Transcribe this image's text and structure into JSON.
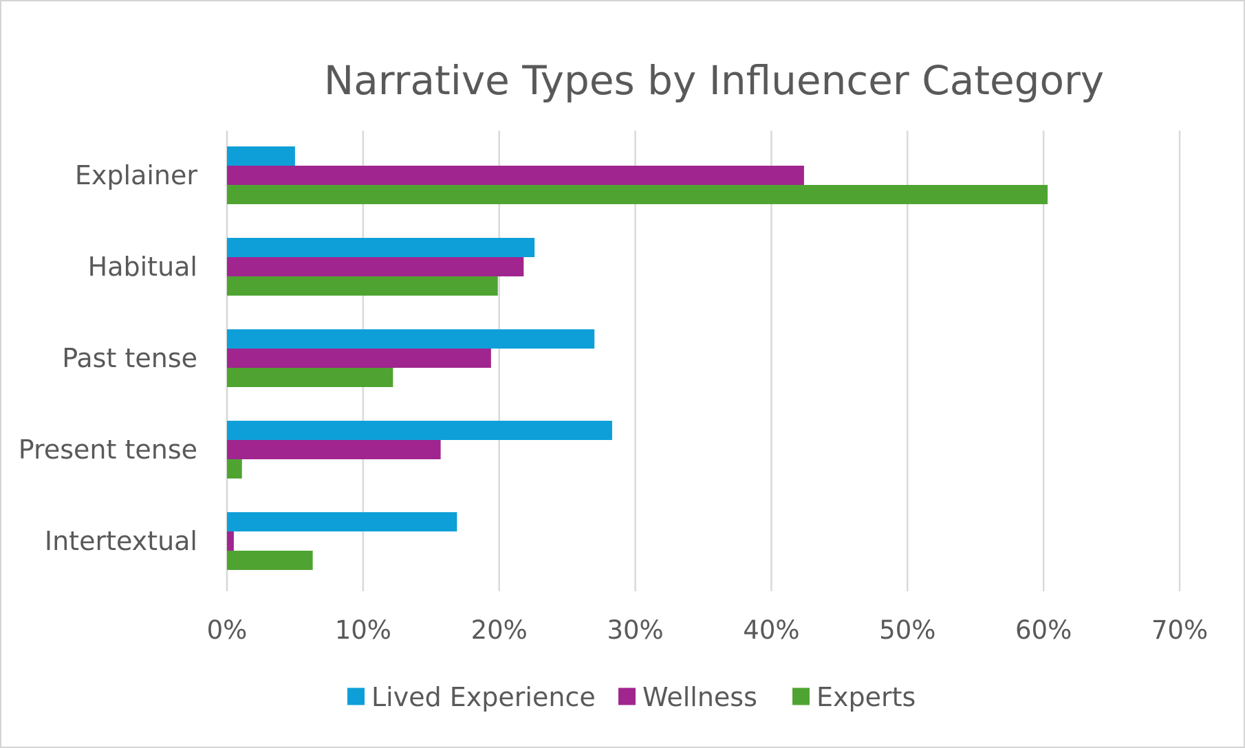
{
  "chart_data": {
    "type": "bar",
    "orientation": "horizontal",
    "title": "Narrative Types by Influencer Category",
    "xlabel": "",
    "ylabel": "",
    "categories": [
      "Explainer",
      "Habitual",
      "Past tense",
      "Present tense",
      "Intertextual"
    ],
    "series": [
      {
        "name": "Lived Experience",
        "color": "#0E9FD8",
        "values": [
          5.0,
          22.6,
          27.0,
          28.3,
          16.9
        ]
      },
      {
        "name": "Wellness",
        "color": "#A0258F",
        "values": [
          42.4,
          21.8,
          19.4,
          15.7,
          0.5
        ]
      },
      {
        "name": "Experts",
        "color": "#4FA431",
        "values": [
          60.3,
          19.9,
          12.2,
          1.1,
          6.3
        ]
      }
    ],
    "xlim": [
      0,
      70
    ],
    "xticks": [
      0,
      10,
      20,
      30,
      40,
      50,
      60,
      70
    ],
    "tick_format": "percent",
    "grid": true,
    "legend_position": "bottom"
  }
}
